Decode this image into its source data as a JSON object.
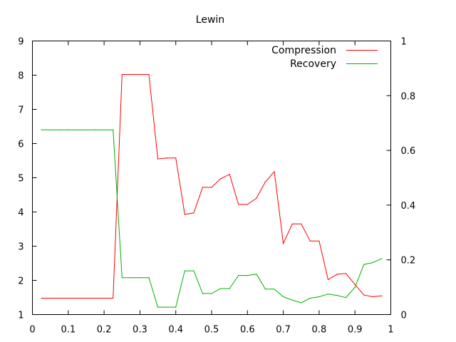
{
  "chart_data": {
    "type": "line",
    "title": "Lewin",
    "xlabel": "",
    "ylabel": "",
    "y2label": "",
    "xlim": [
      0,
      1
    ],
    "ylim": [
      1,
      9
    ],
    "y2lim": [
      0,
      1
    ],
    "x_ticks": [
      "0",
      "0.1",
      "0.2",
      "0.3",
      "0.4",
      "0.5",
      "0.6",
      "0.7",
      "0.8",
      "0.9",
      "1"
    ],
    "y_ticks": [
      "1",
      "2",
      "3",
      "4",
      "5",
      "6",
      "7",
      "8",
      "9"
    ],
    "y2_ticks": [
      "0",
      "0.2",
      "0.4",
      "0.6",
      "0.8",
      "1"
    ],
    "grid": false,
    "legend_position": "top-right",
    "series": [
      {
        "name": "Compression",
        "axis": "y1",
        "color": "#ff0000",
        "x": [
          0.025,
          0.05,
          0.075,
          0.1,
          0.125,
          0.15,
          0.175,
          0.2,
          0.225,
          0.25,
          0.275,
          0.3,
          0.325,
          0.35,
          0.375,
          0.4,
          0.425,
          0.45,
          0.475,
          0.5,
          0.525,
          0.55,
          0.575,
          0.6,
          0.625,
          0.65,
          0.675,
          0.7,
          0.725,
          0.75,
          0.775,
          0.8,
          0.825,
          0.85,
          0.875,
          0.9,
          0.925,
          0.95,
          0.975
        ],
        "y": [
          1.48,
          1.48,
          1.48,
          1.48,
          1.48,
          1.48,
          1.48,
          1.48,
          1.48,
          8.02,
          8.02,
          8.02,
          8.02,
          5.55,
          5.58,
          5.58,
          3.93,
          3.97,
          4.72,
          4.72,
          4.97,
          5.1,
          4.22,
          4.22,
          4.4,
          4.88,
          5.18,
          3.08,
          3.65,
          3.65,
          3.15,
          3.15,
          2.02,
          2.18,
          2.2,
          1.88,
          1.57,
          1.52,
          1.55
        ]
      },
      {
        "name": "Recovery",
        "axis": "y2",
        "color": "#00b000",
        "x": [
          0.025,
          0.05,
          0.075,
          0.1,
          0.125,
          0.15,
          0.175,
          0.2,
          0.225,
          0.25,
          0.275,
          0.3,
          0.325,
          0.35,
          0.375,
          0.4,
          0.425,
          0.45,
          0.475,
          0.5,
          0.525,
          0.55,
          0.575,
          0.6,
          0.625,
          0.65,
          0.675,
          0.7,
          0.725,
          0.75,
          0.775,
          0.8,
          0.825,
          0.85,
          0.875,
          0.9,
          0.925,
          0.95,
          0.975
        ],
        "y": [
          0.675,
          0.675,
          0.675,
          0.675,
          0.675,
          0.675,
          0.675,
          0.675,
          0.675,
          0.135,
          0.135,
          0.135,
          0.135,
          0.027,
          0.027,
          0.027,
          0.16,
          0.16,
          0.077,
          0.077,
          0.095,
          0.095,
          0.143,
          0.143,
          0.148,
          0.093,
          0.093,
          0.065,
          0.053,
          0.043,
          0.06,
          0.065,
          0.075,
          0.07,
          0.062,
          0.1,
          0.183,
          0.19,
          0.205
        ]
      }
    ]
  }
}
